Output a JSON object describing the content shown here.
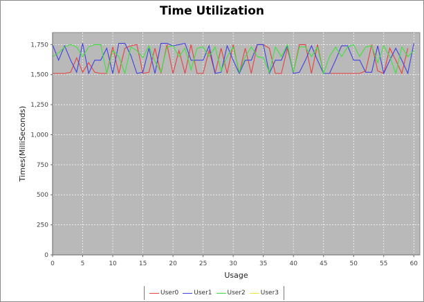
{
  "chart_data": {
    "type": "line",
    "title": "Time Utilization",
    "xlabel": "Usage",
    "ylabel": "Times(MilliSeconds)",
    "xlim": [
      0,
      61
    ],
    "ylim": [
      0,
      1850
    ],
    "xticks": [
      "0",
      "5",
      "10",
      "15",
      "20",
      "25",
      "30",
      "35",
      "40",
      "45",
      "50",
      "55",
      "60"
    ],
    "yticks": [
      "0",
      "250",
      "500",
      "750",
      "1,000",
      "1,250",
      "1,500",
      "1,750"
    ],
    "grid": true,
    "legend_position": "bottom",
    "series": [
      {
        "name": "User0",
        "color": "#e84040",
        "x": [
          0,
          1,
          2,
          3,
          4,
          5,
          6,
          7,
          8,
          9,
          10,
          11,
          12,
          13,
          14,
          15,
          16,
          17,
          18,
          19,
          20,
          21,
          22,
          23,
          24,
          25,
          26,
          27,
          28,
          29,
          30,
          31,
          32,
          33,
          34,
          35,
          36,
          37,
          38,
          39,
          40,
          41,
          42,
          43,
          44,
          45,
          46,
          47,
          48,
          49,
          50,
          51,
          52,
          53,
          54,
          55,
          56,
          57,
          58,
          59
        ],
        "y": [
          1510,
          1510,
          1510,
          1520,
          1640,
          1520,
          1600,
          1520,
          1510,
          1510,
          1730,
          1510,
          1720,
          1740,
          1750,
          1510,
          1520,
          1720,
          1510,
          1750,
          1510,
          1700,
          1510,
          1750,
          1510,
          1510,
          1700,
          1510,
          1720,
          1510,
          1750,
          1510,
          1720,
          1510,
          1750,
          1750,
          1720,
          1510,
          1510,
          1720,
          1520,
          1750,
          1750,
          1510,
          1750,
          1510,
          1510,
          1510,
          1510,
          1510,
          1510,
          1510,
          1530,
          1750,
          1530,
          1510,
          1720,
          1620,
          1510,
          1720
        ]
      },
      {
        "name": "User1",
        "color": "#4040e0",
        "x": [
          0,
          1,
          2,
          3,
          4,
          5,
          6,
          7,
          8,
          9,
          10,
          11,
          12,
          13,
          14,
          15,
          16,
          17,
          18,
          19,
          20,
          21,
          22,
          23,
          24,
          25,
          26,
          27,
          28,
          29,
          30,
          31,
          32,
          33,
          34,
          35,
          36,
          37,
          38,
          39,
          40,
          41,
          42,
          43,
          44,
          45,
          46,
          47,
          48,
          49,
          50,
          51,
          52,
          53,
          54,
          55,
          56,
          57,
          58,
          59,
          60
        ],
        "y": [
          1750,
          1620,
          1740,
          1620,
          1520,
          1760,
          1510,
          1620,
          1620,
          1720,
          1510,
          1760,
          1760,
          1660,
          1510,
          1520,
          1720,
          1510,
          1760,
          1760,
          1740,
          1750,
          1760,
          1620,
          1620,
          1620,
          1740,
          1510,
          1520,
          1740,
          1620,
          1510,
          1620,
          1620,
          1750,
          1750,
          1510,
          1620,
          1620,
          1740,
          1510,
          1520,
          1620,
          1740,
          1620,
          1510,
          1510,
          1620,
          1740,
          1740,
          1620,
          1620,
          1520,
          1520,
          1740,
          1510,
          1620,
          1720,
          1620,
          1510,
          1760
        ]
      },
      {
        "name": "User2",
        "color": "#40e040",
        "x": [
          0,
          1,
          2,
          3,
          4,
          5,
          6,
          7,
          8,
          9,
          10,
          11,
          12,
          13,
          14,
          15,
          16,
          17,
          18,
          19,
          20,
          21,
          22,
          23,
          24,
          25,
          26,
          27,
          28,
          29,
          30,
          31,
          32,
          33,
          34,
          35,
          36,
          37,
          38,
          39,
          40,
          41,
          42,
          43,
          44,
          45,
          46,
          47,
          48,
          49,
          50,
          51,
          52,
          53,
          54,
          55,
          56,
          57,
          58,
          59,
          60
        ],
        "y": [
          1650,
          1680,
          1730,
          1750,
          1730,
          1650,
          1730,
          1750,
          1750,
          1510,
          1700,
          1650,
          1510,
          1730,
          1700,
          1640,
          1740,
          1610,
          1520,
          1730,
          1740,
          1650,
          1720,
          1540,
          1720,
          1730,
          1650,
          1730,
          1530,
          1650,
          1730,
          1520,
          1650,
          1730,
          1650,
          1640,
          1520,
          1730,
          1650,
          1750,
          1520,
          1730,
          1730,
          1650,
          1730,
          1510,
          1650,
          1730,
          1650,
          1730,
          1750,
          1650,
          1730,
          1740,
          1600,
          1740,
          1650,
          1510,
          1730,
          1650,
          1700
        ]
      },
      {
        "name": "User3",
        "color": "#e8e830",
        "x": [],
        "y": []
      }
    ]
  }
}
